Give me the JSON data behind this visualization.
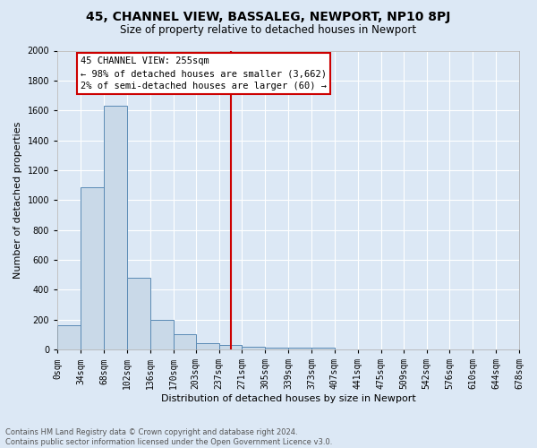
{
  "title": "45, CHANNEL VIEW, BASSALEG, NEWPORT, NP10 8PJ",
  "subtitle": "Size of property relative to detached houses in Newport",
  "xlabel": "Distribution of detached houses by size in Newport",
  "ylabel": "Number of detached properties",
  "footer_line1": "Contains HM Land Registry data © Crown copyright and database right 2024.",
  "footer_line2": "Contains public sector information licensed under the Open Government Licence v3.0.",
  "annotation_title": "45 CHANNEL VIEW: 255sqm",
  "annotation_line2": "← 98% of detached houses are smaller (3,662)",
  "annotation_line3": "2% of semi-detached houses are larger (60) →",
  "bar_edges": [
    0,
    34,
    68,
    102,
    136,
    170,
    203,
    237,
    271,
    305,
    339,
    373,
    407,
    441,
    475,
    509,
    542,
    576,
    610,
    644,
    678
  ],
  "bar_heights": [
    160,
    1085,
    1630,
    480,
    200,
    100,
    40,
    30,
    20,
    10,
    10,
    10,
    0,
    0,
    0,
    0,
    0,
    0,
    0,
    0
  ],
  "bar_color": "#c9d9e8",
  "bar_edge_color": "#5a8ab5",
  "vline_x": 255,
  "vline_color": "#cc0000",
  "background_color": "#dce8f5",
  "grid_color": "#ffffff",
  "tick_labels": [
    "0sqm",
    "34sqm",
    "68sqm",
    "102sqm",
    "136sqm",
    "170sqm",
    "203sqm",
    "237sqm",
    "271sqm",
    "305sqm",
    "339sqm",
    "373sqm",
    "407sqm",
    "441sqm",
    "475sqm",
    "509sqm",
    "542sqm",
    "576sqm",
    "610sqm",
    "644sqm",
    "678sqm"
  ],
  "ylim": [
    0,
    2000
  ],
  "yticks": [
    0,
    200,
    400,
    600,
    800,
    1000,
    1200,
    1400,
    1600,
    1800,
    2000
  ],
  "title_fontsize": 10,
  "subtitle_fontsize": 8.5,
  "xlabel_fontsize": 8,
  "ylabel_fontsize": 8,
  "tick_fontsize": 7,
  "footer_fontsize": 6,
  "annotation_fontsize": 7.5
}
